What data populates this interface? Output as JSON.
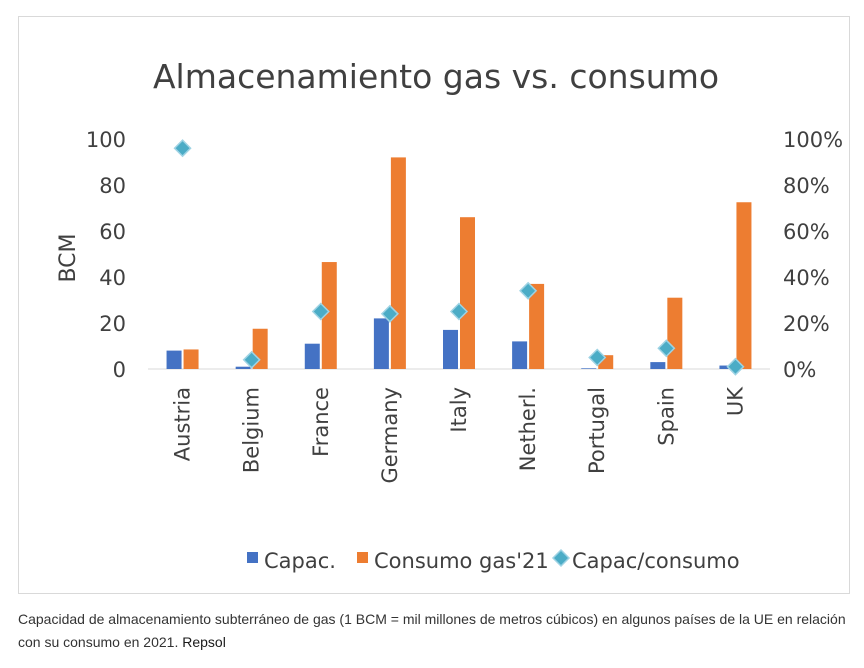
{
  "chart_data": {
    "type": "bar",
    "title": "Almacenamiento gas vs. consumo",
    "xlabel": "",
    "ylabel": "BCM",
    "ylim": [
      0,
      100
    ],
    "y2lim": [
      0,
      100
    ],
    "y_ticks": [
      "0",
      "20",
      "40",
      "60",
      "80",
      "100"
    ],
    "y2_ticks": [
      "0%",
      "20%",
      "40%",
      "60%",
      "80%",
      "100%"
    ],
    "categories": [
      "Austria",
      "Belgium",
      "France",
      "Germany",
      "Italy",
      "Netherl.",
      "Portugal",
      "Spain",
      "UK"
    ],
    "series": [
      {
        "name": "Capac.",
        "type": "bar",
        "axis": "left",
        "color": "#4472c4",
        "values": [
          8,
          1,
          11,
          22,
          17,
          12,
          0.3,
          3,
          1.5
        ]
      },
      {
        "name": "Consumo gas'21",
        "type": "bar",
        "axis": "left",
        "color": "#ed7d31",
        "values": [
          8.5,
          17.5,
          46.5,
          92,
          66,
          37,
          6,
          31,
          72.5
        ]
      },
      {
        "name": "Capac/consumo",
        "type": "scatter",
        "axis": "right",
        "unit": "%",
        "color": "#4bacc6",
        "values": [
          96,
          4,
          25,
          24,
          25,
          34,
          5,
          9,
          1
        ]
      }
    ],
    "legend": "bottom"
  },
  "caption": {
    "text": "Capacidad de almacenamiento subterráneo de gas (1 BCM = mil millones de metros cúbicos) en algunos países de la UE en relación con su consumo en 2021.",
    "credit": "Repsol"
  }
}
